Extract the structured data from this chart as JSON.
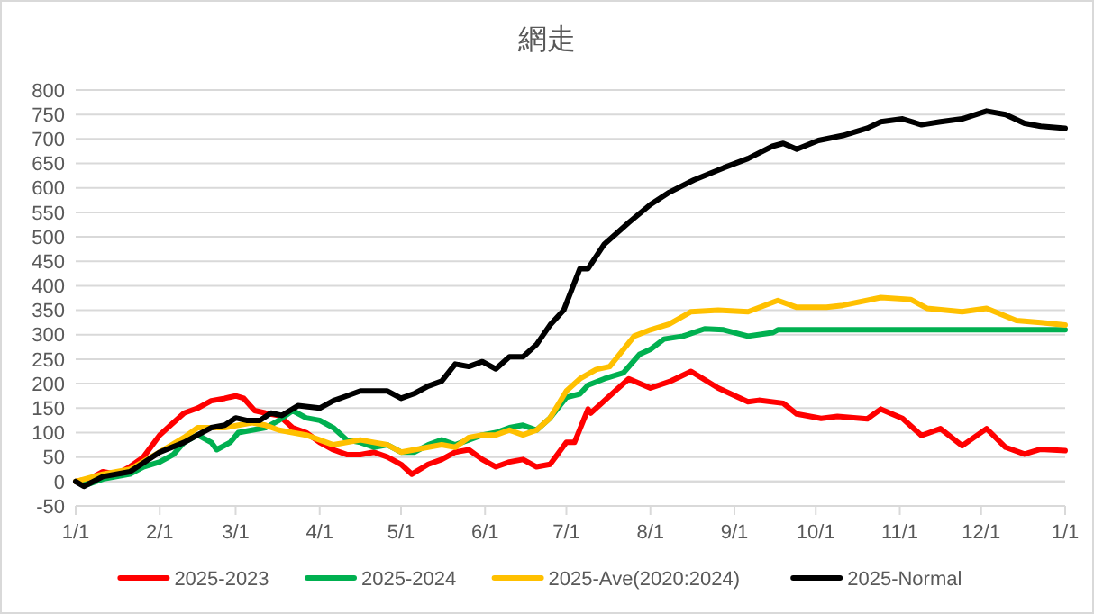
{
  "chart_data": {
    "type": "line",
    "title": "網走",
    "xlim": [
      "2025-01-01",
      "2026-01-01"
    ],
    "ylim": [
      -50,
      800
    ],
    "xticks": [
      {
        "value": "2025-01-01",
        "label": "1/1"
      },
      {
        "value": "2025-02-01",
        "label": "2/1"
      },
      {
        "value": "2025-03-01",
        "label": "3/1"
      },
      {
        "value": "2025-04-01",
        "label": "4/1"
      },
      {
        "value": "2025-05-01",
        "label": "5/1"
      },
      {
        "value": "2025-06-01",
        "label": "6/1"
      },
      {
        "value": "2025-07-01",
        "label": "7/1"
      },
      {
        "value": "2025-08-01",
        "label": "8/1"
      },
      {
        "value": "2025-09-01",
        "label": "9/1"
      },
      {
        "value": "2025-10-01",
        "label": "10/1"
      },
      {
        "value": "2025-11-01",
        "label": "11/1"
      },
      {
        "value": "2025-12-01",
        "label": "12/1"
      },
      {
        "value": "2026-01-01",
        "label": "1/1"
      }
    ],
    "yticks": [
      -50,
      0,
      50,
      100,
      150,
      200,
      250,
      300,
      350,
      400,
      450,
      500,
      550,
      600,
      650,
      700,
      750,
      800
    ],
    "grid": "y",
    "legend": "bottom",
    "marker": "none",
    "line_style": "solid",
    "series": [
      {
        "name": "2025-2023",
        "color": "#ff0000",
        "x": [
          "2025-01-01",
          "2025-01-06",
          "2025-01-11",
          "2025-01-16",
          "2025-01-21",
          "2025-01-26",
          "2025-02-01",
          "2025-02-05",
          "2025-02-10",
          "2025-02-15",
          "2025-02-20",
          "2025-02-25",
          "2025-03-01",
          "2025-03-04",
          "2025-03-08",
          "2025-03-12",
          "2025-03-17",
          "2025-03-22",
          "2025-03-27",
          "2025-04-01",
          "2025-04-06",
          "2025-04-11",
          "2025-04-16",
          "2025-04-21",
          "2025-04-26",
          "2025-05-01",
          "2025-05-05",
          "2025-05-11",
          "2025-05-16",
          "2025-05-21",
          "2025-05-26",
          "2025-05-31",
          "2025-06-05",
          "2025-06-10",
          "2025-06-15",
          "2025-06-20",
          "2025-06-25",
          "2025-07-01",
          "2025-07-04",
          "2025-07-09",
          "2025-07-10",
          "2025-07-19",
          "2025-07-24",
          "2025-08-01",
          "2025-08-08",
          "2025-08-16",
          "2025-08-26",
          "2025-09-06",
          "2025-09-10",
          "2025-09-19",
          "2025-09-24",
          "2025-10-03",
          "2025-10-09",
          "2025-10-20",
          "2025-10-25",
          "2025-11-02",
          "2025-11-09",
          "2025-11-16",
          "2025-11-24",
          "2025-12-03",
          "2025-12-10",
          "2025-12-17",
          "2025-12-23",
          "2026-01-01"
        ],
        "values": [
          0,
          5,
          20,
          15,
          30,
          50,
          95,
          115,
          140,
          150,
          165,
          170,
          175,
          170,
          145,
          140,
          135,
          110,
          100,
          80,
          65,
          55,
          55,
          60,
          50,
          35,
          15,
          35,
          45,
          60,
          65,
          45,
          30,
          40,
          45,
          30,
          35,
          80,
          80,
          148,
          140,
          185,
          210,
          191,
          204,
          225,
          191,
          163,
          166,
          160,
          138,
          129,
          133,
          128,
          148,
          129,
          94,
          108,
          73,
          108,
          70,
          56,
          66,
          63
        ]
      },
      {
        "name": "2025-2024",
        "color": "#00b050",
        "x": [
          "2025-01-01",
          "2025-01-06",
          "2025-01-11",
          "2025-01-21",
          "2025-01-26",
          "2025-02-01",
          "2025-02-06",
          "2025-02-10",
          "2025-02-15",
          "2025-02-20",
          "2025-02-22",
          "2025-02-27",
          "2025-03-02",
          "2025-03-07",
          "2025-03-12",
          "2025-03-17",
          "2025-03-22",
          "2025-03-27",
          "2025-04-01",
          "2025-04-06",
          "2025-04-11",
          "2025-04-16",
          "2025-04-21",
          "2025-04-26",
          "2025-05-01",
          "2025-05-06",
          "2025-05-11",
          "2025-05-16",
          "2025-05-21",
          "2025-05-26",
          "2025-05-31",
          "2025-06-05",
          "2025-06-10",
          "2025-06-15",
          "2025-06-20",
          "2025-06-25",
          "2025-07-01",
          "2025-07-06",
          "2025-07-09",
          "2025-07-15",
          "2025-07-22",
          "2025-07-28",
          "2025-08-01",
          "2025-08-06",
          "2025-08-13",
          "2025-08-21",
          "2025-08-28",
          "2025-09-06",
          "2025-09-15",
          "2025-09-17",
          "2026-01-01"
        ],
        "values": [
          0,
          -5,
          5,
          15,
          30,
          40,
          55,
          80,
          95,
          80,
          65,
          80,
          100,
          105,
          110,
          125,
          145,
          130,
          125,
          110,
          85,
          80,
          70,
          75,
          60,
          60,
          75,
          85,
          75,
          85,
          95,
          100,
          110,
          115,
          105,
          130,
          172,
          179,
          197,
          210,
          222,
          260,
          270,
          291,
          297,
          312,
          310,
          297,
          304,
          310,
          310
        ]
      },
      {
        "name": "2025-Ave(2020:2024)",
        "color": "#ffc000",
        "x": [
          "2025-01-01",
          "2025-01-11",
          "2025-01-21",
          "2025-02-01",
          "2025-02-10",
          "2025-02-15",
          "2025-02-20",
          "2025-02-25",
          "2025-03-02",
          "2025-03-07",
          "2025-03-12",
          "2025-03-17",
          "2025-03-22",
          "2025-03-27",
          "2025-04-01",
          "2025-04-06",
          "2025-04-11",
          "2025-04-16",
          "2025-04-21",
          "2025-04-26",
          "2025-05-01",
          "2025-05-06",
          "2025-05-11",
          "2025-05-16",
          "2025-05-21",
          "2025-05-26",
          "2025-05-31",
          "2025-06-05",
          "2025-06-10",
          "2025-06-15",
          "2025-06-20",
          "2025-06-25",
          "2025-07-01",
          "2025-07-06",
          "2025-07-12",
          "2025-07-17",
          "2025-07-26",
          "2025-08-01",
          "2025-08-08",
          "2025-08-16",
          "2025-08-26",
          "2025-09-06",
          "2025-09-17",
          "2025-09-24",
          "2025-10-05",
          "2025-10-11",
          "2025-10-25",
          "2025-11-05",
          "2025-11-11",
          "2025-11-24",
          "2025-12-03",
          "2025-12-14",
          "2025-12-23",
          "2026-01-01"
        ],
        "values": [
          0,
          15,
          25,
          60,
          90,
          110,
          110,
          110,
          115,
          120,
          115,
          105,
          100,
          95,
          85,
          75,
          80,
          85,
          80,
          75,
          60,
          65,
          70,
          75,
          70,
          90,
          95,
          95,
          105,
          95,
          105,
          130,
          185,
          210,
          229,
          235,
          297,
          310,
          322,
          347,
          350,
          347,
          370,
          356,
          356,
          360,
          376,
          372,
          354,
          347,
          354,
          329,
          325,
          320
        ]
      },
      {
        "name": "2025-Normal",
        "color": "#000000",
        "x": [
          "2025-01-01",
          "2025-01-04",
          "2025-01-11",
          "2025-01-21",
          "2025-02-01",
          "2025-02-10",
          "2025-02-15",
          "2025-02-20",
          "2025-02-25",
          "2025-03-01",
          "2025-03-05",
          "2025-03-10",
          "2025-03-14",
          "2025-03-18",
          "2025-03-24",
          "2025-04-01",
          "2025-04-06",
          "2025-04-11",
          "2025-04-16",
          "2025-04-21",
          "2025-04-26",
          "2025-05-01",
          "2025-05-06",
          "2025-05-11",
          "2025-05-16",
          "2025-05-21",
          "2025-05-26",
          "2025-05-31",
          "2025-06-05",
          "2025-06-10",
          "2025-06-15",
          "2025-06-20",
          "2025-06-25",
          "2025-06-30",
          "2025-07-06",
          "2025-07-09",
          "2025-07-15",
          "2025-07-24",
          "2025-08-01",
          "2025-08-08",
          "2025-08-17",
          "2025-08-28",
          "2025-09-06",
          "2025-09-15",
          "2025-09-19",
          "2025-09-24",
          "2025-10-02",
          "2025-10-11",
          "2025-10-20",
          "2025-10-25",
          "2025-11-02",
          "2025-11-09",
          "2025-11-16",
          "2025-11-24",
          "2025-12-03",
          "2025-12-10",
          "2025-12-17",
          "2025-12-23",
          "2026-01-01"
        ],
        "values": [
          0,
          -10,
          10,
          20,
          60,
          80,
          95,
          110,
          115,
          130,
          125,
          125,
          140,
          135,
          155,
          150,
          165,
          175,
          185,
          185,
          185,
          170,
          180,
          195,
          205,
          240,
          235,
          245,
          230,
          255,
          255,
          280,
          320,
          350,
          435,
          435,
          485,
          529,
          566,
          591,
          616,
          641,
          660,
          685,
          691,
          679,
          697,
          707,
          722,
          735,
          741,
          729,
          735,
          741,
          757,
          750,
          732,
          726,
          722
        ]
      }
    ]
  }
}
